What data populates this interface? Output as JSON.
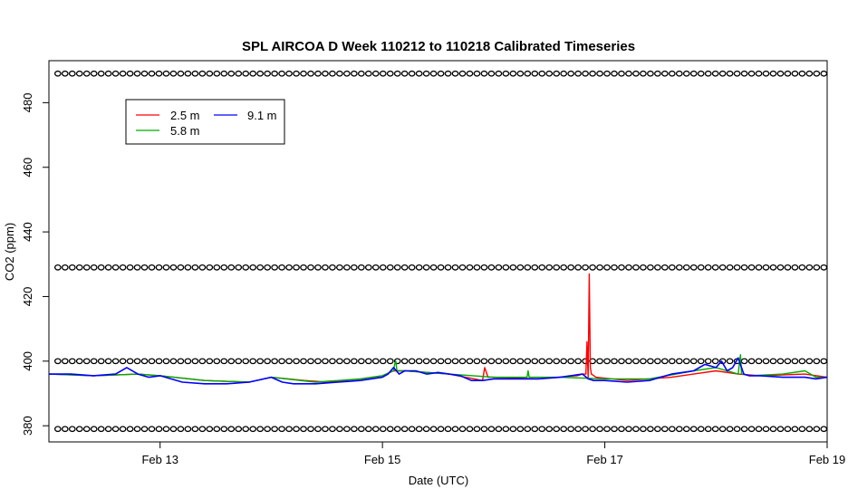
{
  "chart_data": {
    "type": "line",
    "title": "SPL AIRCOA D  Week 110212 to 110218  Calibrated Timeseries",
    "xlabel": "Date (UTC)",
    "ylabel": "CO2 (ppm)",
    "xlim": [
      12.0,
      19.0
    ],
    "ylim": [
      375,
      493
    ],
    "x_ticks": [
      {
        "value": 13,
        "label": "Feb 13"
      },
      {
        "value": 15,
        "label": "Feb 15"
      },
      {
        "value": 17,
        "label": "Feb 17"
      },
      {
        "value": 19,
        "label": "Feb 19"
      }
    ],
    "y_ticks": [
      380,
      400,
      420,
      440,
      460,
      480
    ],
    "legend": {
      "position": "top-left",
      "entries": [
        {
          "name": "2.5 m",
          "color": "#ff0000"
        },
        {
          "name": "5.8 m",
          "color": "#00aa00"
        },
        {
          "name": "9.1 m",
          "color": "#0000ff"
        }
      ]
    },
    "calibration_markers": {
      "symbol": "o",
      "levels_ppm": [
        489,
        429,
        400,
        379
      ],
      "x_start": 12.08,
      "x_end": 18.98,
      "spacing_days": 0.065
    },
    "series": [
      {
        "name": "9.1 m",
        "color": "#0000ff",
        "x": [
          12.0,
          12.2,
          12.4,
          12.6,
          12.7,
          12.8,
          12.9,
          13.0,
          13.2,
          13.4,
          13.6,
          13.8,
          14.0,
          14.1,
          14.2,
          14.4,
          14.6,
          14.8,
          15.0,
          15.05,
          15.1,
          15.15,
          15.2,
          15.3,
          15.4,
          15.5,
          15.6,
          15.7,
          15.8,
          15.9,
          16.0,
          16.2,
          16.4,
          16.6,
          16.8,
          16.85,
          16.9,
          17.0,
          17.2,
          17.4,
          17.6,
          17.8,
          17.9,
          18.0,
          18.05,
          18.1,
          18.15,
          18.2,
          18.25,
          18.3,
          18.4,
          18.6,
          18.8,
          18.9,
          19.0
        ],
        "y": [
          396,
          396,
          395.5,
          396,
          398,
          396,
          395,
          395.5,
          393.5,
          393,
          393,
          393.5,
          395,
          393.5,
          393,
          393,
          393.5,
          394,
          395,
          396,
          398,
          396,
          397,
          397,
          396,
          396.5,
          396,
          395.5,
          394,
          394,
          394.5,
          394.5,
          394.5,
          395,
          396,
          394.5,
          394,
          394,
          393.5,
          394,
          396,
          397,
          399,
          398,
          400,
          397,
          398,
          401,
          396,
          395.5,
          395.5,
          395,
          395,
          394.5,
          395
        ]
      },
      {
        "name": "2.5 m",
        "color": "#ff0000",
        "x": [
          12.0,
          12.4,
          12.8,
          13.0,
          13.4,
          13.8,
          14.0,
          14.3,
          14.5,
          14.8,
          15.0,
          15.1,
          15.2,
          15.6,
          15.9,
          15.92,
          15.95,
          16.0,
          16.4,
          16.75,
          16.8,
          16.83,
          16.84,
          16.85,
          16.86,
          16.87,
          16.88,
          16.92,
          17.2,
          17.6,
          18.0,
          18.2,
          18.4,
          18.8,
          19.0
        ],
        "y": [
          396,
          395.5,
          396,
          395.5,
          394,
          393.5,
          395,
          394,
          393.5,
          394.5,
          395.5,
          397,
          397,
          396,
          394,
          398,
          395,
          395,
          394.5,
          395.5,
          396,
          396,
          406,
          395,
          427,
          398,
          396,
          395,
          394,
          395,
          397,
          396,
          395.5,
          396,
          395
        ]
      },
      {
        "name": "5.8 m",
        "color": "#00aa00",
        "x": [
          12.0,
          12.4,
          12.8,
          13.0,
          13.4,
          13.8,
          14.0,
          14.4,
          14.8,
          15.0,
          15.1,
          15.11,
          15.12,
          15.13,
          15.2,
          15.6,
          16.0,
          16.3,
          16.31,
          16.32,
          16.33,
          16.6,
          17.0,
          17.4,
          17.8,
          18.0,
          18.2,
          18.22,
          18.23,
          18.24,
          18.3,
          18.6,
          18.8,
          18.9,
          19.0
        ],
        "y": [
          396,
          395.5,
          396,
          395.5,
          394,
          393.5,
          395,
          393.5,
          394.5,
          395.5,
          397,
          399,
          400,
          397,
          397,
          396,
          395,
          395,
          397,
          395,
          395,
          395,
          394.5,
          394.5,
          397,
          398,
          396,
          402,
          396,
          396,
          395.5,
          396,
          397,
          395,
          395
        ]
      }
    ]
  }
}
